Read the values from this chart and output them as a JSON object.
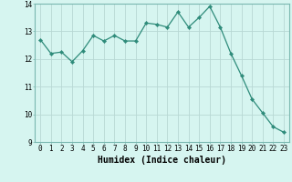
{
  "x": [
    0,
    1,
    2,
    3,
    4,
    5,
    6,
    7,
    8,
    9,
    10,
    11,
    12,
    13,
    14,
    15,
    16,
    17,
    18,
    19,
    20,
    21,
    22,
    23
  ],
  "y": [
    12.7,
    12.2,
    12.25,
    11.9,
    12.3,
    12.85,
    12.65,
    12.85,
    12.65,
    12.65,
    13.3,
    13.25,
    13.15,
    13.7,
    13.15,
    13.5,
    13.9,
    13.15,
    12.2,
    11.4,
    10.55,
    10.05,
    9.55,
    9.35
  ],
  "line_color": "#2e8b7a",
  "marker": "D",
  "marker_size": 2.2,
  "bg_color": "#d6f5f0",
  "grid_color_major": "#b8d8d4",
  "grid_color_minor": "#cce8e4",
  "xlabel": "Humidex (Indice chaleur)",
  "ylim": [
    9,
    14
  ],
  "xlim_min": -0.5,
  "xlim_max": 23.5,
  "yticks": [
    9,
    10,
    11,
    12,
    13,
    14
  ],
  "xticks": [
    0,
    1,
    2,
    3,
    4,
    5,
    6,
    7,
    8,
    9,
    10,
    11,
    12,
    13,
    14,
    15,
    16,
    17,
    18,
    19,
    20,
    21,
    22,
    23
  ],
  "tick_fontsize": 5.5,
  "label_fontsize": 7.0,
  "line_width": 0.9
}
